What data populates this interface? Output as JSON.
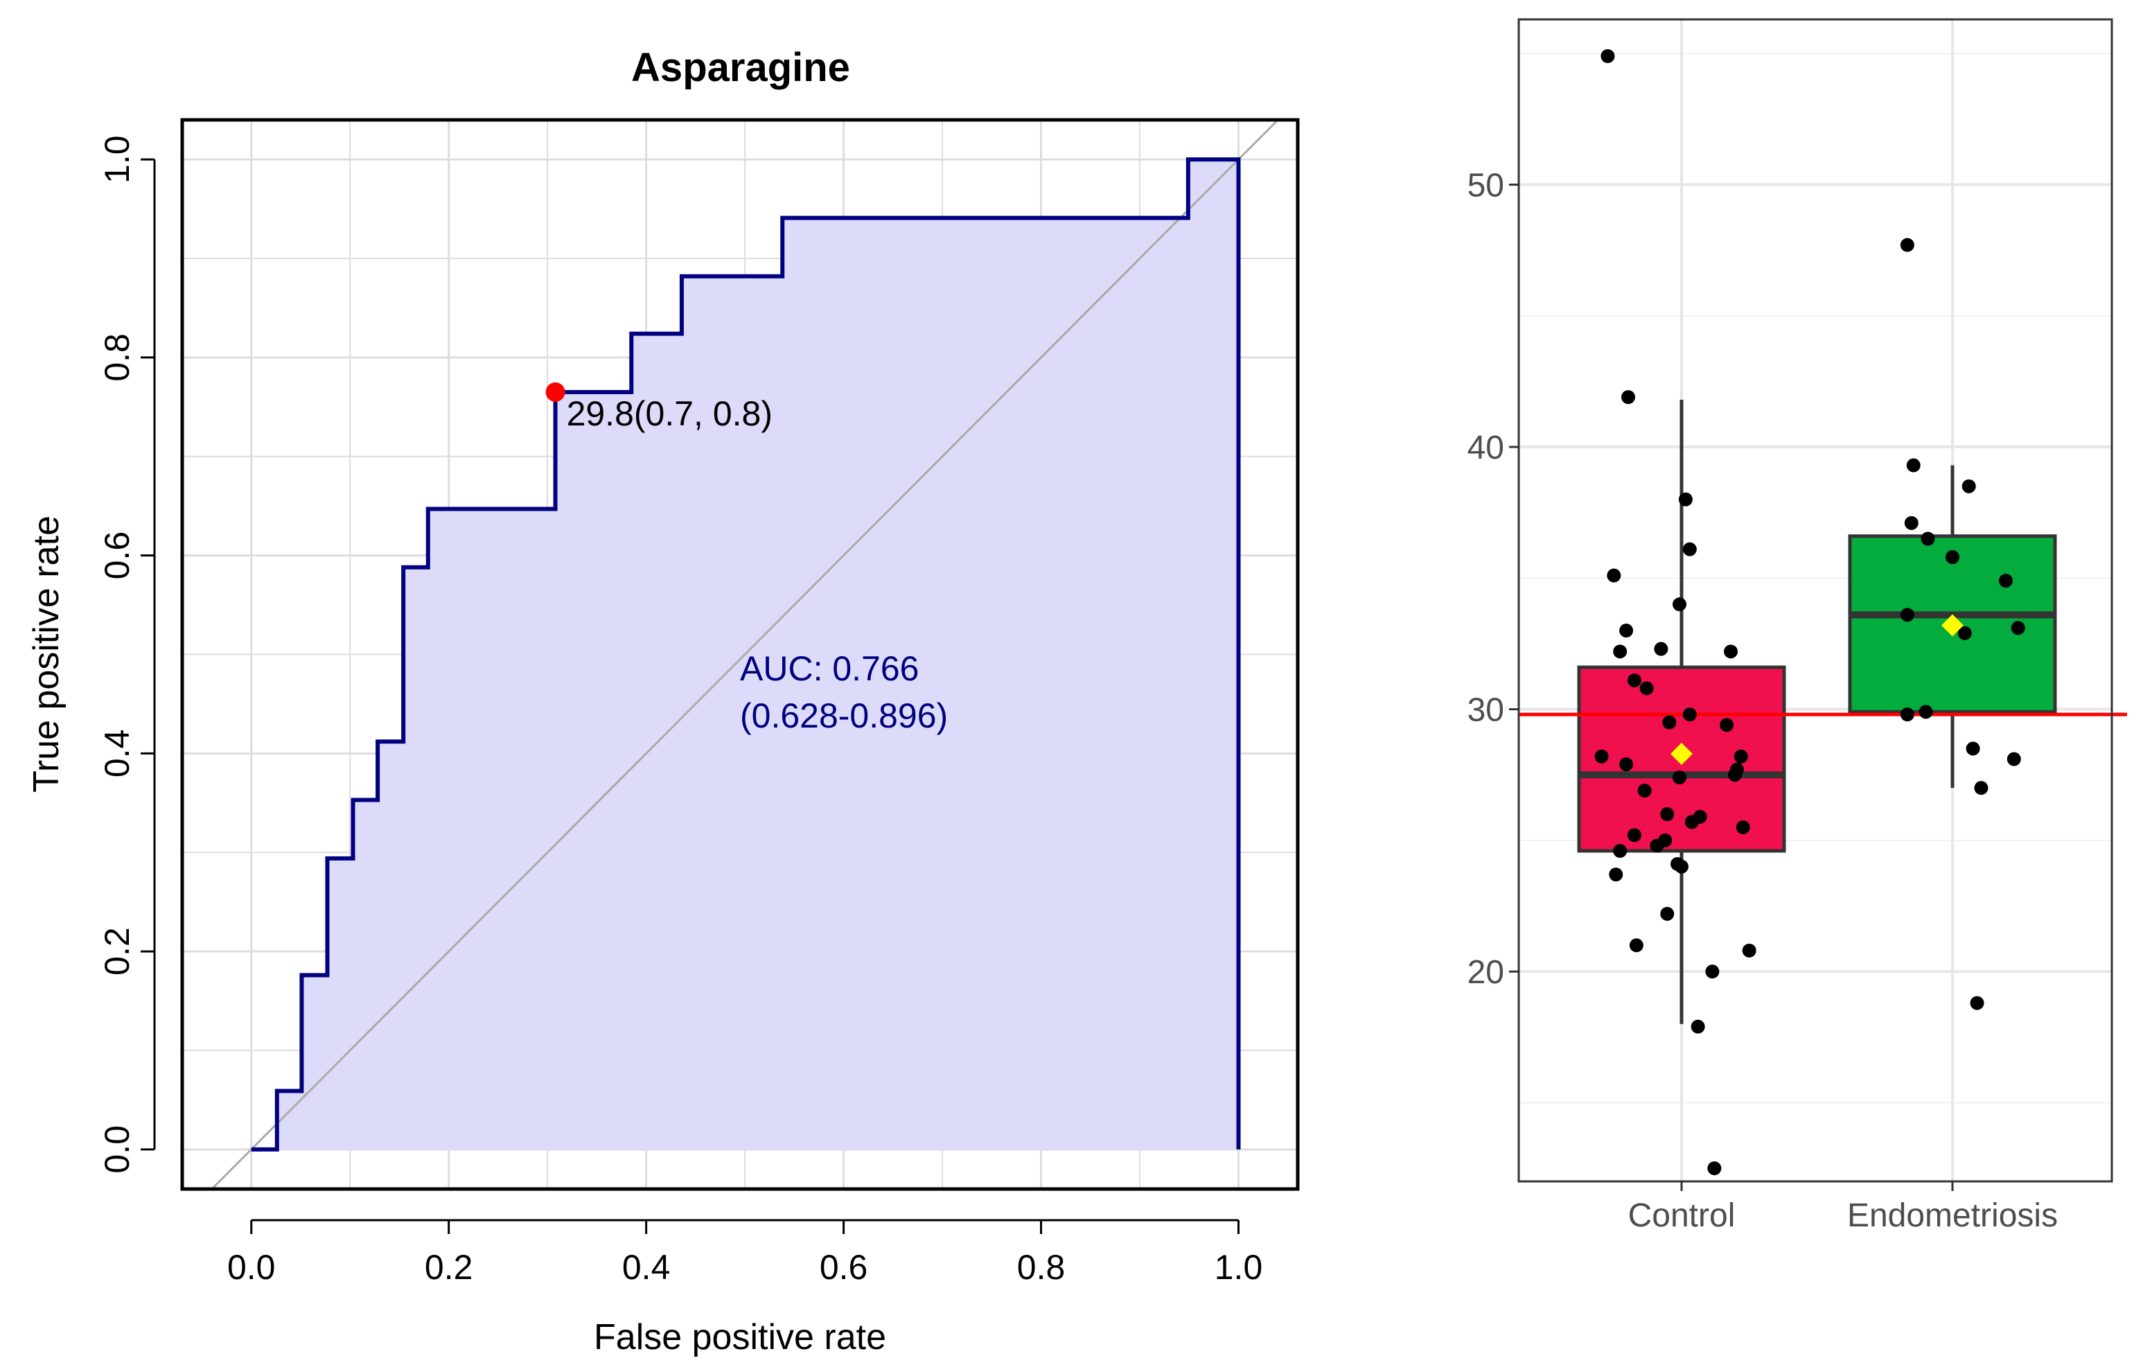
{
  "chart_data": [
    {
      "type": "line",
      "subtype": "roc",
      "title": "Asparagine",
      "xlabel": "False positive rate",
      "ylabel": "True positive rate",
      "xlim": [
        -0.07,
        1.06
      ],
      "ylim": [
        -0.04,
        1.04
      ],
      "xticks": [
        "0.0",
        "0.2",
        "0.4",
        "0.6",
        "0.8",
        "1.0"
      ],
      "yticks": [
        "0.0",
        "0.2",
        "0.4",
        "0.6",
        "0.8",
        "1.0"
      ],
      "grid": true,
      "roc_curve": [
        [
          0.0,
          0.0
        ],
        [
          0.026,
          0.0
        ],
        [
          0.026,
          0.059
        ],
        [
          0.051,
          0.059
        ],
        [
          0.051,
          0.176
        ],
        [
          0.077,
          0.176
        ],
        [
          0.077,
          0.294
        ],
        [
          0.103,
          0.294
        ],
        [
          0.103,
          0.353
        ],
        [
          0.128,
          0.353
        ],
        [
          0.128,
          0.412
        ],
        [
          0.154,
          0.412
        ],
        [
          0.154,
          0.588
        ],
        [
          0.179,
          0.588
        ],
        [
          0.179,
          0.647
        ],
        [
          0.308,
          0.647
        ],
        [
          0.308,
          0.765
        ],
        [
          0.385,
          0.765
        ],
        [
          0.385,
          0.824
        ],
        [
          0.436,
          0.824
        ],
        [
          0.436,
          0.882
        ],
        [
          0.538,
          0.882
        ],
        [
          0.538,
          0.941
        ],
        [
          0.949,
          0.941
        ],
        [
          0.949,
          1.0
        ],
        [
          1.0,
          1.0
        ],
        [
          1.0,
          0.0
        ]
      ],
      "diagonal": [
        [
          -0.04,
          -0.04
        ],
        [
          1.04,
          1.04
        ]
      ],
      "optimal_point": {
        "x": 0.308,
        "y": 0.765,
        "label": "29.8(0.7, 0.8)",
        "color": "#ff0000"
      },
      "auc_line1": "AUC: 0.766",
      "auc_line2": "(0.628-0.896)",
      "curve_color": "#000080",
      "fill_color": "#dcdcfa",
      "diagonal_color": "#aaaaaa"
    },
    {
      "type": "box",
      "categories": [
        "Control",
        "Endometriosis"
      ],
      "ylim": [
        12,
        56.3
      ],
      "yticks": [
        20,
        30,
        40,
        50
      ],
      "grid": true,
      "threshold": {
        "value": 29.8,
        "color": "#ff0000"
      },
      "mean_marker_color": "#ffff00",
      "groups": [
        {
          "name": "Control",
          "color": "#f0104e",
          "q1": 24.6,
          "median": 27.5,
          "q3": 31.6,
          "whisker_low": 18.0,
          "whisker_high": 41.8,
          "mean": 28.3,
          "points": [
            [
              -0.36,
              54.9
            ],
            [
              -0.26,
              41.9
            ],
            [
              0.02,
              38.0
            ],
            [
              0.04,
              36.1
            ],
            [
              -0.33,
              35.1
            ],
            [
              -0.01,
              34.0
            ],
            [
              -0.27,
              33.0
            ],
            [
              -0.1,
              32.3
            ],
            [
              0.24,
              32.2
            ],
            [
              -0.3,
              32.2
            ],
            [
              -0.23,
              31.1
            ],
            [
              -0.17,
              30.8
            ],
            [
              0.04,
              29.8
            ],
            [
              -0.06,
              29.5
            ],
            [
              0.22,
              29.4
            ],
            [
              -0.39,
              28.2
            ],
            [
              0.29,
              28.2
            ],
            [
              -0.27,
              27.9
            ],
            [
              0.27,
              27.7
            ],
            [
              0.26,
              27.5
            ],
            [
              -0.01,
              27.4
            ],
            [
              -0.18,
              26.9
            ],
            [
              -0.07,
              26.0
            ],
            [
              0.09,
              25.9
            ],
            [
              0.05,
              25.7
            ],
            [
              0.3,
              25.5
            ],
            [
              -0.23,
              25.2
            ],
            [
              -0.08,
              25.0
            ],
            [
              -0.12,
              24.8
            ],
            [
              -0.3,
              24.6
            ],
            [
              -0.02,
              24.1
            ],
            [
              0.0,
              24.0
            ],
            [
              -0.32,
              23.7
            ],
            [
              -0.07,
              22.2
            ],
            [
              -0.22,
              21.0
            ],
            [
              0.33,
              20.8
            ],
            [
              0.15,
              20.0
            ],
            [
              0.08,
              17.9
            ],
            [
              0.16,
              12.5
            ]
          ]
        },
        {
          "name": "Endometriosis",
          "color": "#04ab3d",
          "q1": 29.9,
          "median": 33.6,
          "q3": 36.6,
          "whisker_low": 27.0,
          "whisker_high": 39.3,
          "mean": 33.2,
          "points": [
            [
              -0.22,
              47.7
            ],
            [
              -0.19,
              39.3
            ],
            [
              0.08,
              38.5
            ],
            [
              -0.2,
              37.1
            ],
            [
              -0.12,
              36.5
            ],
            [
              0.0,
              35.8
            ],
            [
              0.26,
              34.9
            ],
            [
              -0.22,
              33.6
            ],
            [
              0.06,
              32.9
            ],
            [
              0.32,
              33.1
            ],
            [
              -0.13,
              29.9
            ],
            [
              -0.22,
              29.8
            ],
            [
              0.1,
              28.5
            ],
            [
              0.3,
              28.1
            ],
            [
              0.14,
              27.0
            ],
            [
              0.12,
              18.8
            ]
          ]
        }
      ]
    }
  ]
}
